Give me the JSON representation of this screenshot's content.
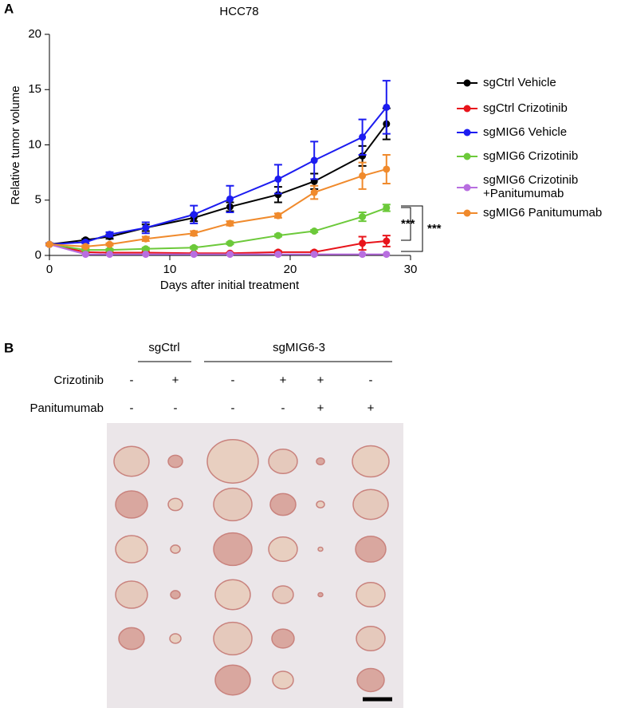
{
  "panel_labels": [
    "A",
    "B"
  ],
  "chart_data": {
    "type": "line",
    "title": "HCC78",
    "x_label": "Days after initial treatment",
    "y_label": "Relative tumor volume",
    "x": [
      0,
      3,
      5,
      8,
      12,
      15,
      19,
      22,
      26,
      28
    ],
    "xlim": [
      0,
      30
    ],
    "xticks": [
      0,
      10,
      20,
      30
    ],
    "ylim": [
      0,
      20
    ],
    "yticks": [
      0,
      5,
      10,
      15,
      20
    ],
    "series": [
      {
        "name": "sgCtrl Vehicle",
        "color": "#000000",
        "values": [
          1,
          1.4,
          1.7,
          2.5,
          3.4,
          4.4,
          5.5,
          6.7,
          9.0,
          11.9
        ],
        "errors": [
          0.1,
          0.1,
          0.2,
          0.3,
          0.3,
          0.4,
          0.7,
          0.7,
          0.9,
          1.4
        ]
      },
      {
        "name": "sgCtrl Crizotinib",
        "color": "#e8141b",
        "values": [
          1,
          0.3,
          0.25,
          0.25,
          0.2,
          0.2,
          0.3,
          0.3,
          1.1,
          1.3
        ],
        "errors": [
          0,
          0.1,
          0.1,
          0.1,
          0.05,
          0.05,
          0.1,
          0.1,
          0.6,
          0.5
        ]
      },
      {
        "name": "sgMIG6 Vehicle",
        "color": "#1c1cf0",
        "values": [
          1,
          1.2,
          1.9,
          2.5,
          3.7,
          5.1,
          6.9,
          8.6,
          10.7,
          13.4
        ],
        "errors": [
          0.1,
          0.1,
          0.2,
          0.5,
          0.8,
          1.2,
          1.3,
          1.7,
          1.6,
          2.4
        ]
      },
      {
        "name": "sgMIG6 Crizotinib",
        "color": "#6cc93a",
        "values": [
          1,
          0.5,
          0.5,
          0.6,
          0.7,
          1.1,
          1.8,
          2.2,
          3.5,
          4.3
        ],
        "errors": [
          0,
          0.1,
          0.1,
          0.1,
          0.1,
          0.1,
          0.1,
          0.1,
          0.4,
          0.3
        ]
      },
      {
        "name": "sgMIG6 Crizotinib\n+Panitumumab",
        "color": "#b86ee0",
        "values": [
          1,
          0.1,
          0.1,
          0.1,
          0.1,
          0.1,
          0.1,
          0.1,
          0.1,
          0.1
        ],
        "errors": [
          0,
          0,
          0,
          0,
          0,
          0,
          0,
          0,
          0,
          0
        ]
      },
      {
        "name": "sgMIG6 Panitumumab",
        "color": "#f08a2c",
        "values": [
          1,
          0.8,
          1.0,
          1.5,
          2.0,
          2.9,
          3.6,
          5.7,
          7.2,
          7.8
        ],
        "errors": [
          0.05,
          0.1,
          0.1,
          0.2,
          0.2,
          0.2,
          0.2,
          0.6,
          1.2,
          1.3
        ]
      }
    ],
    "annotations": [
      "***",
      "***"
    ]
  },
  "panel_b": {
    "groups": [
      "sgCtrl",
      "sgMIG6-3"
    ],
    "rows": [
      {
        "label": "Crizotinib",
        "signs": [
          "-",
          "+",
          "-",
          "+",
          "+",
          "-"
        ]
      },
      {
        "label": "Panitumumab",
        "signs": [
          "-",
          "-",
          "-",
          "-",
          "+",
          "+"
        ]
      }
    ]
  }
}
